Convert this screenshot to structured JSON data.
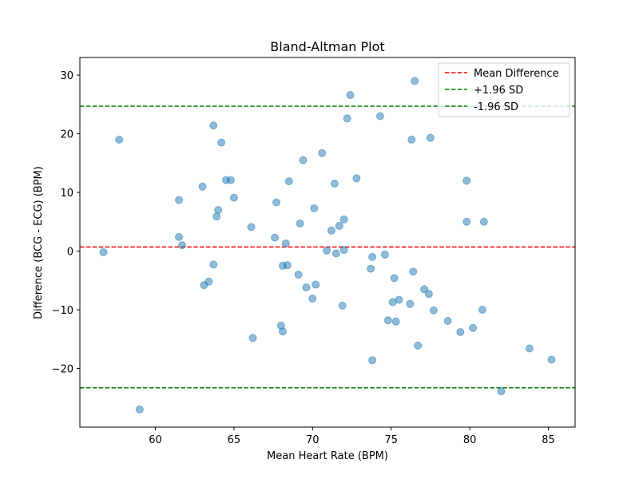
{
  "chart_data": {
    "type": "scatter",
    "title": "Bland-Altman Plot",
    "xlabel": "Mean Heart Rate (BPM)",
    "ylabel": "Difference (BCG - ECG) (BPM)",
    "xlim": [
      55.2,
      86.7
    ],
    "ylim": [
      -30,
      33
    ],
    "xticks": [
      60,
      65,
      70,
      75,
      80,
      85
    ],
    "yticks": [
      -20,
      -10,
      0,
      10,
      20,
      30
    ],
    "ytick_labels": [
      "−20",
      "−10",
      "0",
      "10",
      "20",
      "30"
    ],
    "grid": false,
    "legend_position": "top-right",
    "point_color": "#1f77b4",
    "points": [
      {
        "x": 56.7,
        "y": -0.2
      },
      {
        "x": 57.7,
        "y": 19.0
      },
      {
        "x": 59.0,
        "y": -27.0
      },
      {
        "x": 61.5,
        "y": 8.7
      },
      {
        "x": 61.5,
        "y": 2.4
      },
      {
        "x": 61.7,
        "y": 1.0
      },
      {
        "x": 63.0,
        "y": 11.0
      },
      {
        "x": 63.1,
        "y": -5.8
      },
      {
        "x": 63.4,
        "y": -5.2
      },
      {
        "x": 63.7,
        "y": 21.4
      },
      {
        "x": 63.7,
        "y": -2.3
      },
      {
        "x": 63.9,
        "y": 5.9
      },
      {
        "x": 64.0,
        "y": 7.0
      },
      {
        "x": 64.2,
        "y": 18.5
      },
      {
        "x": 64.5,
        "y": 12.1
      },
      {
        "x": 64.8,
        "y": 12.1
      },
      {
        "x": 65.0,
        "y": 9.1
      },
      {
        "x": 66.1,
        "y": 4.1
      },
      {
        "x": 66.2,
        "y": -14.8
      },
      {
        "x": 67.6,
        "y": 2.3
      },
      {
        "x": 67.7,
        "y": 8.3
      },
      {
        "x": 68.0,
        "y": -12.7
      },
      {
        "x": 68.1,
        "y": -13.7
      },
      {
        "x": 68.1,
        "y": -2.5
      },
      {
        "x": 68.3,
        "y": 1.3
      },
      {
        "x": 68.4,
        "y": -2.4
      },
      {
        "x": 68.5,
        "y": 11.9
      },
      {
        "x": 69.1,
        "y": -4.0
      },
      {
        "x": 69.2,
        "y": 4.7
      },
      {
        "x": 69.4,
        "y": 15.5
      },
      {
        "x": 69.6,
        "y": -6.2
      },
      {
        "x": 70.0,
        "y": -8.1
      },
      {
        "x": 70.1,
        "y": 7.3
      },
      {
        "x": 70.2,
        "y": -5.7
      },
      {
        "x": 70.6,
        "y": 16.7
      },
      {
        "x": 70.9,
        "y": 0.1
      },
      {
        "x": 71.2,
        "y": 3.5
      },
      {
        "x": 71.4,
        "y": 11.5
      },
      {
        "x": 71.5,
        "y": -0.4
      },
      {
        "x": 71.7,
        "y": 4.3
      },
      {
        "x": 71.9,
        "y": -9.3
      },
      {
        "x": 72.0,
        "y": 0.2
      },
      {
        "x": 72.0,
        "y": 5.4
      },
      {
        "x": 72.2,
        "y": 22.6
      },
      {
        "x": 72.4,
        "y": 26.6
      },
      {
        "x": 72.8,
        "y": 12.4
      },
      {
        "x": 73.7,
        "y": -3.0
      },
      {
        "x": 73.8,
        "y": -18.6
      },
      {
        "x": 73.8,
        "y": -1.0
      },
      {
        "x": 74.3,
        "y": 23.0
      },
      {
        "x": 74.6,
        "y": -0.6
      },
      {
        "x": 74.8,
        "y": -11.8
      },
      {
        "x": 75.1,
        "y": -8.7
      },
      {
        "x": 75.2,
        "y": -4.6
      },
      {
        "x": 75.3,
        "y": -12.0
      },
      {
        "x": 75.5,
        "y": -8.3
      },
      {
        "x": 76.2,
        "y": -9.0
      },
      {
        "x": 76.3,
        "y": 19.0
      },
      {
        "x": 76.4,
        "y": -3.5
      },
      {
        "x": 76.5,
        "y": 29.0
      },
      {
        "x": 76.7,
        "y": -16.1
      },
      {
        "x": 77.1,
        "y": -6.5
      },
      {
        "x": 77.4,
        "y": -7.3
      },
      {
        "x": 77.5,
        "y": 19.3
      },
      {
        "x": 77.7,
        "y": -10.1
      },
      {
        "x": 78.6,
        "y": -11.9
      },
      {
        "x": 79.4,
        "y": -13.8
      },
      {
        "x": 79.8,
        "y": 12.0
      },
      {
        "x": 79.8,
        "y": 5.0
      },
      {
        "x": 80.2,
        "y": -13.1
      },
      {
        "x": 80.8,
        "y": -10.0
      },
      {
        "x": 80.9,
        "y": 5.0
      },
      {
        "x": 82.0,
        "y": -23.9
      },
      {
        "x": 83.8,
        "y": -16.6
      },
      {
        "x": 85.2,
        "y": -18.5
      }
    ],
    "reference_lines": [
      {
        "name": "Mean Difference",
        "y": 0.7,
        "color": "#ff0000"
      },
      {
        "name": "+1.96 SD",
        "y": 24.7,
        "color": "#008000"
      },
      {
        "name": "-1.96 SD",
        "y": -23.3,
        "color": "#008000"
      }
    ]
  }
}
